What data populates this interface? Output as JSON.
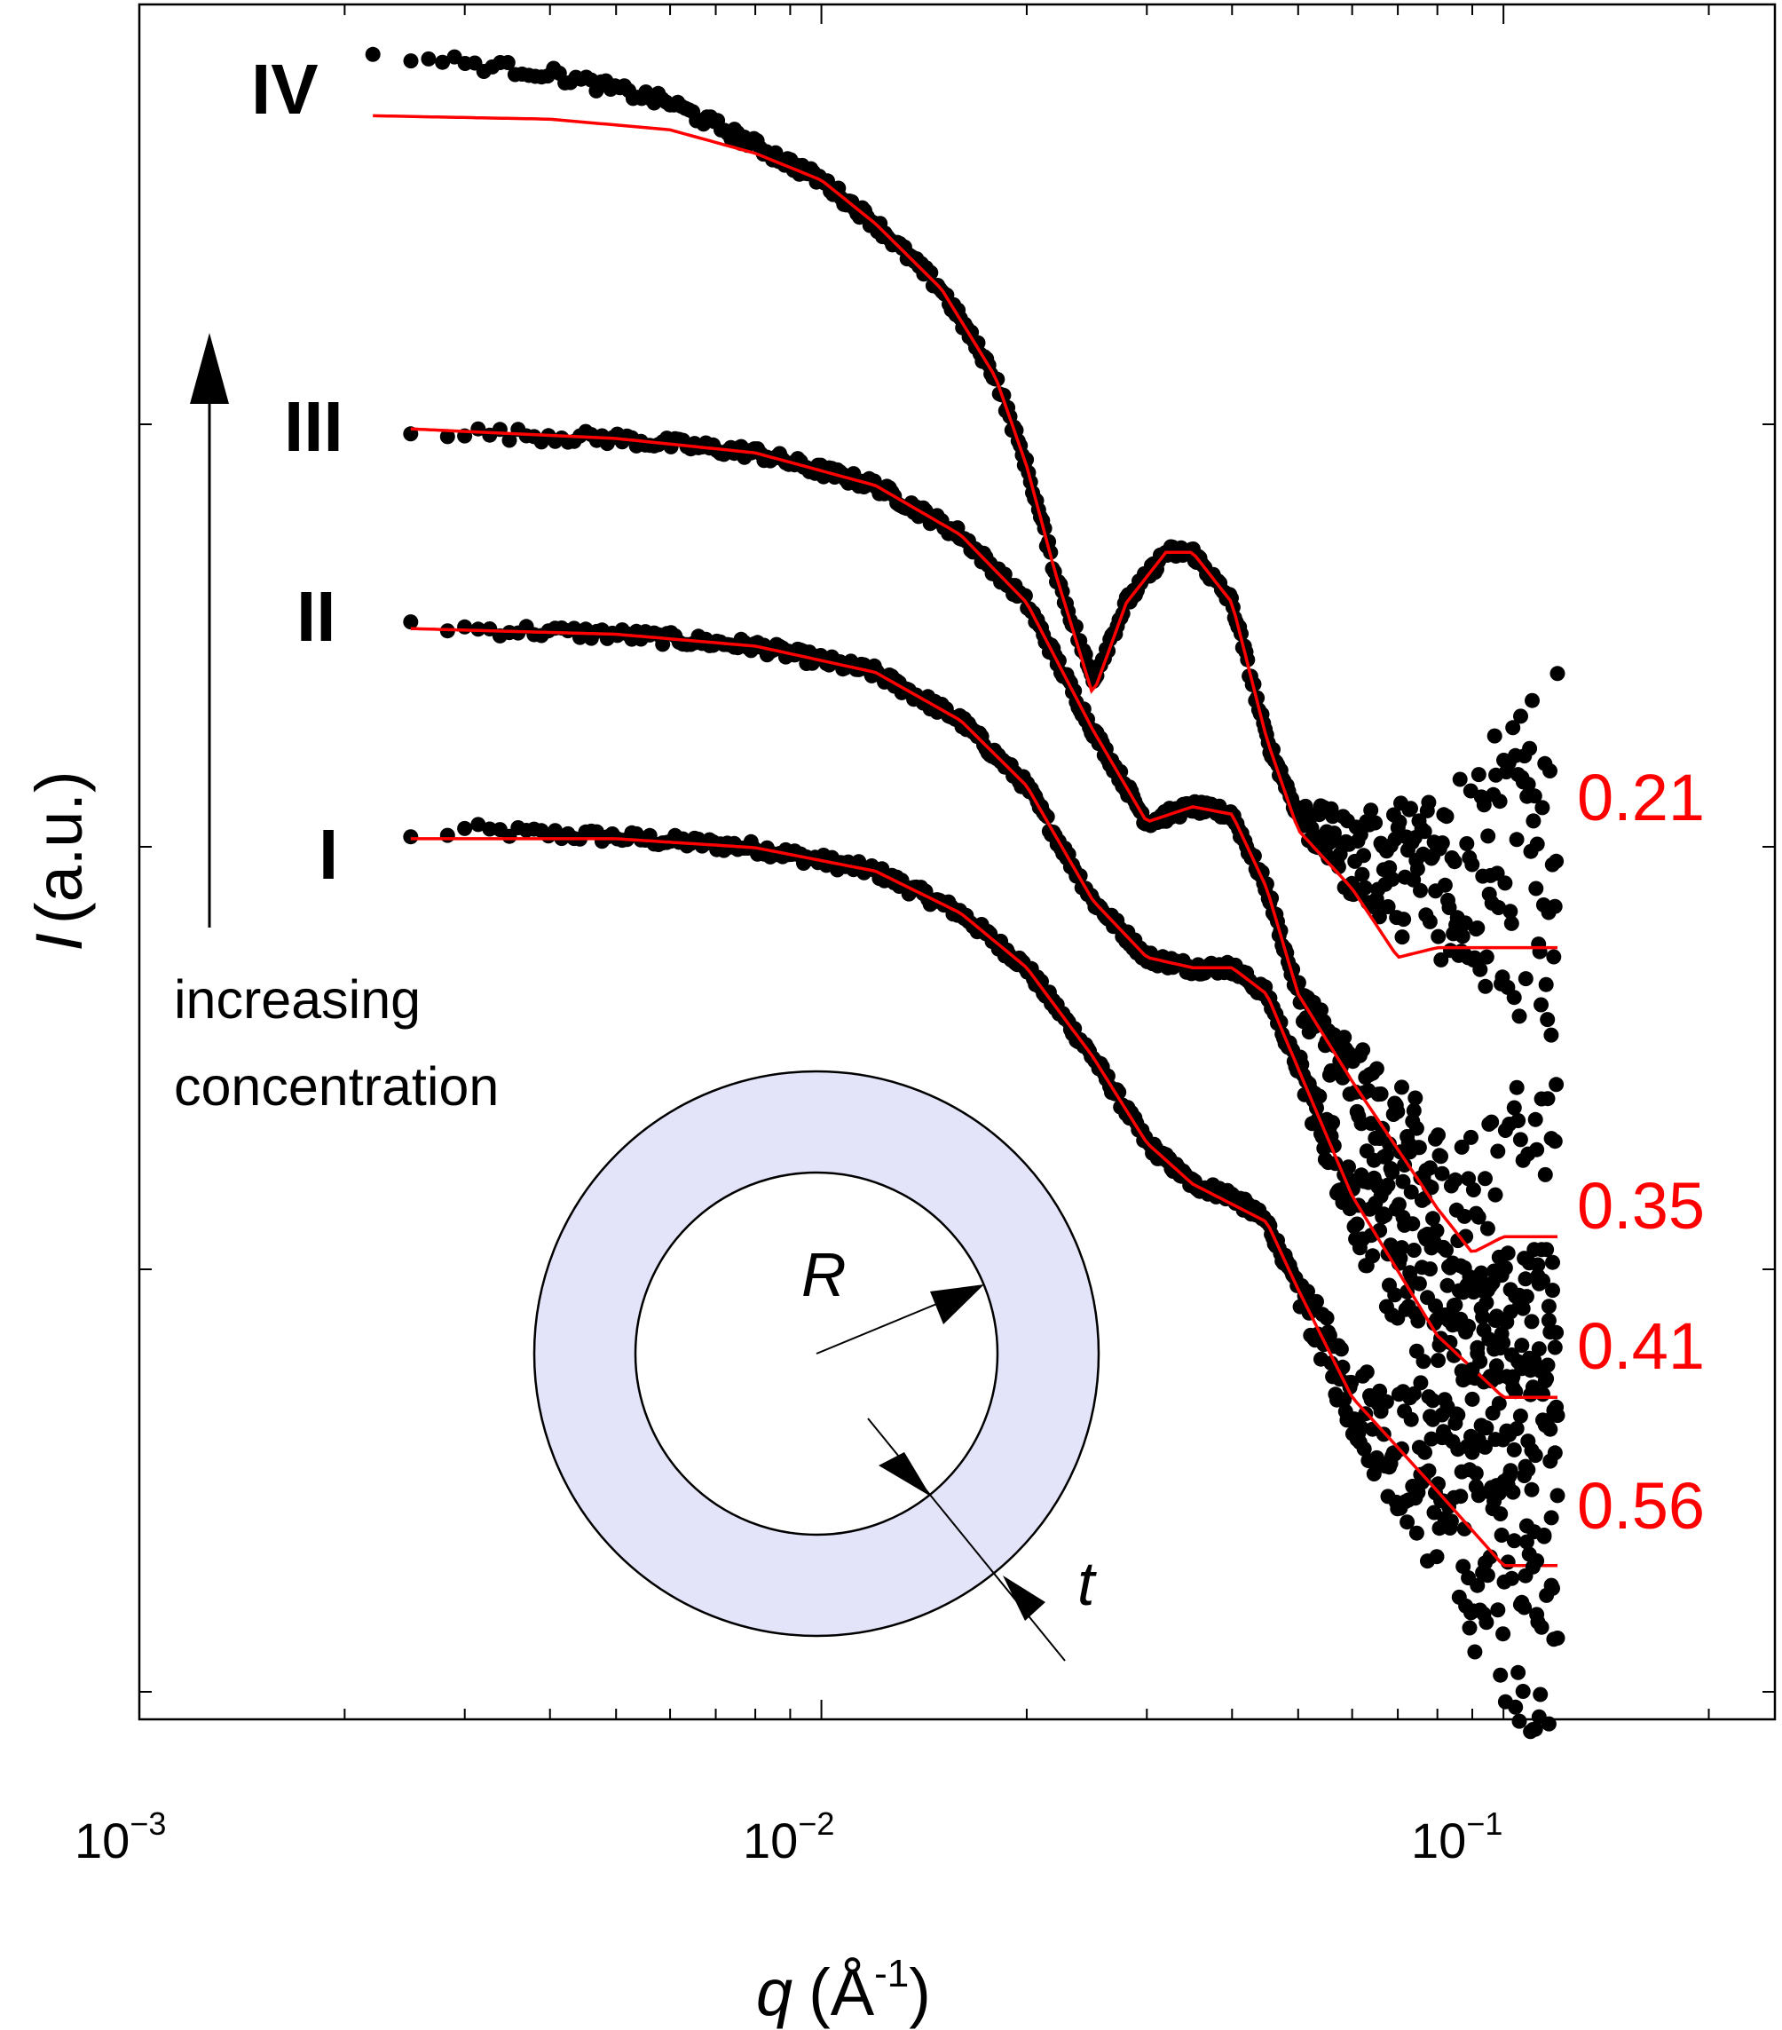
{
  "chart_data": {
    "type": "scatter",
    "x_scale": "log",
    "y_scale": "log",
    "xlim": [
      0.001,
      0.25
    ],
    "xlabel": "q",
    "xunit_prefix": "(Å",
    "xunit_exp": "-1",
    "xunit_suffix": ")",
    "ylabel": "I",
    "yunit": "(a.u.)",
    "x_ticks": [
      {
        "mantissa": "10",
        "exponent": "−3",
        "value": 0.001
      },
      {
        "mantissa": "10",
        "exponent": "−2",
        "value": 0.01
      },
      {
        "mantissa": "10",
        "exponent": "−1",
        "value": 0.1
      }
    ],
    "y_tick_count": 4,
    "arrow_label_line1": "increasing",
    "arrow_label_line2": "concentration",
    "inset": {
      "radius_label": "R",
      "thickness_label": "t",
      "shell_color": "#e3e4f9"
    },
    "series_color_points": "#000000",
    "series_color_fit": "#ff0000",
    "series": [
      {
        "name": "I",
        "fit_label": "0.56",
        "q_min": 0.0025,
        "q_max": 0.12,
        "points": [
          [
            0.0025,
            1.05
          ],
          [
            0.003,
            1.1
          ],
          [
            0.005,
            1.06
          ],
          [
            0.008,
            1.0
          ],
          [
            0.012,
            0.88
          ],
          [
            0.016,
            0.7
          ],
          [
            0.02,
            0.52
          ],
          [
            0.025,
            0.32
          ],
          [
            0.03,
            0.2
          ],
          [
            0.035,
            0.16
          ],
          [
            0.04,
            0.15
          ],
          [
            0.045,
            0.13
          ],
          [
            0.05,
            0.09
          ],
          [
            0.06,
            0.05
          ],
          [
            0.08,
            0.03
          ],
          [
            0.1,
            0.02
          ],
          [
            0.12,
            0.02
          ]
        ],
        "fit": [
          [
            0.0025,
            1.05
          ],
          [
            0.005,
            1.05
          ],
          [
            0.008,
            1.0
          ],
          [
            0.012,
            0.88
          ],
          [
            0.016,
            0.7
          ],
          [
            0.02,
            0.52
          ],
          [
            0.025,
            0.32
          ],
          [
            0.03,
            0.2
          ],
          [
            0.035,
            0.16
          ],
          [
            0.045,
            0.13
          ],
          [
            0.05,
            0.09
          ],
          [
            0.06,
            0.05
          ],
          [
            0.08,
            0.03
          ],
          [
            0.1,
            0.02
          ],
          [
            0.12,
            0.02
          ]
        ]
      },
      {
        "name": "II",
        "fit_label": "0.41",
        "q_min": 0.0025,
        "q_max": 0.12,
        "points": [
          [
            0.0025,
            3.4
          ],
          [
            0.003,
            3.3
          ],
          [
            0.005,
            3.2
          ],
          [
            0.008,
            3.0
          ],
          [
            0.012,
            2.6
          ],
          [
            0.016,
            2.0
          ],
          [
            0.02,
            1.4
          ],
          [
            0.025,
            0.75
          ],
          [
            0.03,
            0.55
          ],
          [
            0.035,
            0.52
          ],
          [
            0.04,
            0.52
          ],
          [
            0.045,
            0.45
          ],
          [
            0.05,
            0.3
          ],
          [
            0.06,
            0.15
          ],
          [
            0.08,
            0.07
          ],
          [
            0.1,
            0.05
          ],
          [
            0.12,
            0.05
          ]
        ],
        "fit": [
          [
            0.0025,
            3.3
          ],
          [
            0.005,
            3.2
          ],
          [
            0.008,
            3.0
          ],
          [
            0.012,
            2.6
          ],
          [
            0.016,
            2.0
          ],
          [
            0.02,
            1.4
          ],
          [
            0.025,
            0.75
          ],
          [
            0.03,
            0.55
          ],
          [
            0.035,
            0.52
          ],
          [
            0.04,
            0.52
          ],
          [
            0.045,
            0.45
          ],
          [
            0.05,
            0.3
          ],
          [
            0.06,
            0.15
          ],
          [
            0.08,
            0.07
          ],
          [
            0.1,
            0.05
          ],
          [
            0.12,
            0.05
          ]
        ]
      },
      {
        "name": "III",
        "fit_label": "0.35",
        "q_min": 0.0025,
        "q_max": 0.12,
        "points": [
          [
            0.0025,
            9.8
          ],
          [
            0.003,
            9.6
          ],
          [
            0.005,
            9.3
          ],
          [
            0.008,
            8.6
          ],
          [
            0.012,
            7.2
          ],
          [
            0.016,
            5.5
          ],
          [
            0.02,
            3.8
          ],
          [
            0.025,
            1.9
          ],
          [
            0.03,
            1.15
          ],
          [
            0.035,
            1.25
          ],
          [
            0.04,
            1.2
          ],
          [
            0.045,
            0.8
          ],
          [
            0.05,
            0.45
          ],
          [
            0.06,
            0.28
          ],
          [
            0.08,
            0.14
          ],
          [
            0.09,
            0.11
          ],
          [
            0.1,
            0.12
          ],
          [
            0.12,
            0.12
          ]
        ],
        "fit": [
          [
            0.0025,
            9.8
          ],
          [
            0.005,
            9.3
          ],
          [
            0.008,
            8.6
          ],
          [
            0.012,
            7.2
          ],
          [
            0.016,
            5.5
          ],
          [
            0.02,
            3.8
          ],
          [
            0.025,
            1.9
          ],
          [
            0.03,
            1.15
          ],
          [
            0.035,
            1.25
          ],
          [
            0.04,
            1.2
          ],
          [
            0.045,
            0.8
          ],
          [
            0.05,
            0.45
          ],
          [
            0.06,
            0.28
          ],
          [
            0.08,
            0.14
          ],
          [
            0.09,
            0.11
          ],
          [
            0.1,
            0.12
          ],
          [
            0.12,
            0.12
          ]
        ]
      },
      {
        "name": "IV",
        "fit_label": "0.21",
        "q_min": 0.0022,
        "q_max": 0.12,
        "points": [
          [
            0.0022,
            75
          ],
          [
            0.0025,
            74
          ],
          [
            0.003,
            72
          ],
          [
            0.004,
            68
          ],
          [
            0.006,
            58
          ],
          [
            0.008,
            46
          ],
          [
            0.01,
            38
          ],
          [
            0.012,
            30
          ],
          [
            0.015,
            21
          ],
          [
            0.018,
            13
          ],
          [
            0.02,
            8
          ],
          [
            0.022,
            4.5
          ],
          [
            0.025,
            2.5
          ],
          [
            0.028,
            3.8
          ],
          [
            0.032,
            5.0
          ],
          [
            0.035,
            5.0
          ],
          [
            0.04,
            3.8
          ],
          [
            0.045,
            1.8
          ],
          [
            0.05,
            1.2
          ],
          [
            0.06,
            0.95
          ],
          [
            0.07,
            0.9
          ],
          [
            0.08,
            0.9
          ],
          [
            0.1,
            0.9
          ],
          [
            0.12,
            0.9
          ]
        ],
        "fit": [
          [
            0.0022,
            54
          ],
          [
            0.004,
            53
          ],
          [
            0.006,
            50
          ],
          [
            0.008,
            44
          ],
          [
            0.01,
            38
          ],
          [
            0.012,
            30
          ],
          [
            0.015,
            21
          ],
          [
            0.018,
            13
          ],
          [
            0.02,
            8
          ],
          [
            0.022,
            4.5
          ],
          [
            0.025,
            2.3
          ],
          [
            0.028,
            3.8
          ],
          [
            0.032,
            5.0
          ],
          [
            0.035,
            5.0
          ],
          [
            0.04,
            3.8
          ],
          [
            0.045,
            1.8
          ],
          [
            0.05,
            1.1
          ],
          [
            0.06,
            0.8
          ],
          [
            0.07,
            0.55
          ],
          [
            0.08,
            0.58
          ],
          [
            0.1,
            0.58
          ],
          [
            0.12,
            0.58
          ]
        ]
      }
    ]
  }
}
